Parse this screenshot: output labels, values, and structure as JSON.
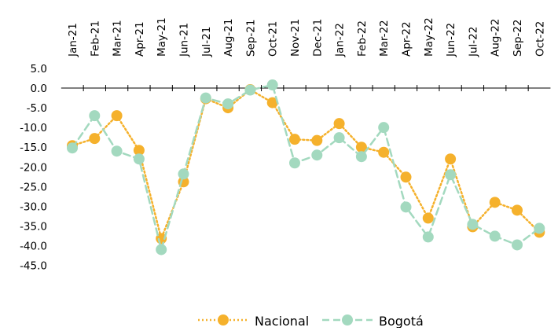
{
  "chart_data": {
    "type": "line",
    "title": "",
    "xlabel": "",
    "ylabel": "",
    "x_axis_position": "top",
    "x_tick_rotation": -90,
    "grid": false,
    "legend_position": "bottom-center",
    "ylim": [
      -45,
      5
    ],
    "y_ticks": [
      "5.0",
      "0.0",
      "-5.0",
      "-10.0",
      "-15.0",
      "-20.0",
      "-25.0",
      "-30.0",
      "-35.0",
      "-40.0",
      "-45.0"
    ],
    "y_tick_values": [
      5,
      0,
      -5,
      -10,
      -15,
      -20,
      -25,
      -30,
      -35,
      -40,
      -45
    ],
    "categories": [
      "Jan-21",
      "Feb-21",
      "Mar-21",
      "Apr-21",
      "May-21",
      "Jun-21",
      "Jul-21",
      "Aug-21",
      "Sep-21",
      "Oct-21",
      "Nov-21",
      "Dec-21",
      "Jan-22",
      "Feb-22",
      "Mar-22",
      "Apr-22",
      "May-22",
      "Jun-22",
      "Jul-22",
      "Aug-22",
      "Sep-22",
      "Oct-22"
    ],
    "series": [
      {
        "name": "Nacional",
        "color": "#F5B12C",
        "line_style": "dotted",
        "values": [
          -14.6,
          -12.8,
          -7.0,
          -15.8,
          -38.2,
          -23.8,
          -2.7,
          -5.0,
          -0.4,
          -3.7,
          -13.0,
          -13.3,
          -9.0,
          -15.0,
          -16.3,
          -22.6,
          -33.0,
          -18.0,
          -35.2,
          -29.0,
          -31.0,
          -36.6
        ]
      },
      {
        "name": "Bogotá",
        "color": "#A3D9BF",
        "line_style": "dashed",
        "values": [
          -15.2,
          -7.0,
          -16.0,
          -18.0,
          -41.0,
          -21.8,
          -2.5,
          -4.0,
          -0.5,
          0.8,
          -19.0,
          -17.0,
          -12.6,
          -17.4,
          -10.0,
          -30.2,
          -37.8,
          -22.0,
          -34.6,
          -37.6,
          -39.8,
          -35.6
        ]
      }
    ]
  }
}
